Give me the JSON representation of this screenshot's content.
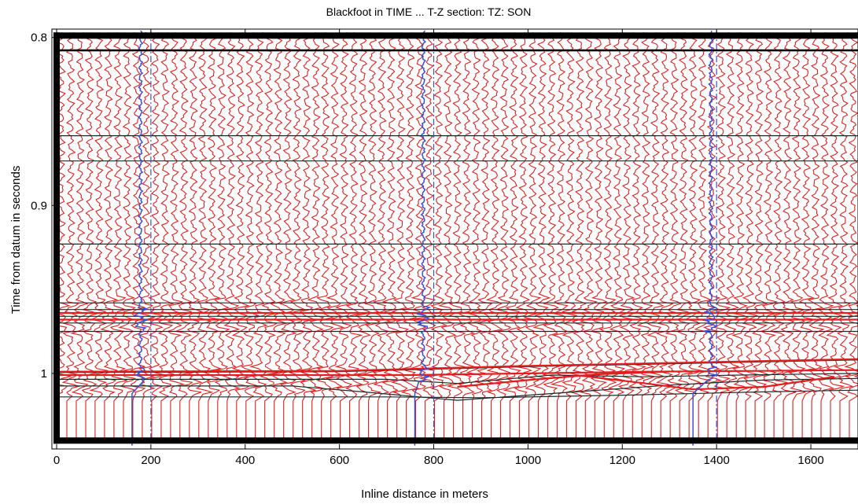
{
  "chart_data": {
    "type": "line",
    "title": "Blackfoot in TIME ... T-Z section: TZ: SON",
    "xlabel": "Inline distance in meters",
    "ylabel": "Time from datum in seconds",
    "xlim": [
      -10,
      1700
    ],
    "ylim": [
      0.795,
      1.045
    ],
    "y_inverted": true,
    "x_ticks": [
      0,
      200,
      400,
      600,
      800,
      1000,
      1200,
      1400,
      1600
    ],
    "x_tick_labels": [
      "0",
      "200",
      "400",
      "600",
      "800",
      "1000",
      "1200",
      "1400",
      "1600"
    ],
    "y_ticks": [
      0.8,
      0.9,
      1.0
    ],
    "y_tick_labels": [
      "0.8",
      "0.9",
      "1"
    ],
    "grid": false,
    "legend": "none",
    "seismic_traces": {
      "color": "#e02020",
      "spacing_m": 20,
      "first_x": 0,
      "last_x": 1700
    },
    "horizons": [
      {
        "name": "",
        "values": [
          [
            0,
            0.808
          ],
          [
            1700,
            0.808
          ]
        ]
      },
      {
        "name": "",
        "values": [
          [
            0,
            0.8585
          ],
          [
            1700,
            0.8585
          ]
        ]
      },
      {
        "name": "",
        "values": [
          [
            0,
            0.8735
          ],
          [
            1700,
            0.8735
          ]
        ]
      },
      {
        "name": "",
        "values": [
          [
            0,
            0.923
          ],
          [
            1700,
            0.923
          ]
        ]
      },
      {
        "name": "",
        "values": [
          [
            0,
            0.958
          ],
          [
            1700,
            0.958
          ]
        ]
      },
      {
        "name": "",
        "values": [
          [
            0,
            0.962
          ],
          [
            1700,
            0.962
          ]
        ]
      },
      {
        "name": "",
        "values": [
          [
            0,
            0.966
          ],
          [
            1700,
            0.966
          ]
        ]
      },
      {
        "name": "",
        "values": [
          [
            0,
            0.97
          ],
          [
            1700,
            0.97
          ]
        ]
      },
      {
        "name": "",
        "values": [
          [
            0,
            0.975
          ],
          [
            1700,
            0.975
          ]
        ]
      },
      {
        "name": "",
        "values": [
          [
            0,
            0.9995
          ],
          [
            600,
            0.999
          ],
          [
            1000,
            0.996
          ],
          [
            1700,
            0.992
          ]
        ]
      },
      {
        "name": "",
        "values": [
          [
            0,
            1.0035
          ],
          [
            700,
            1.0035
          ],
          [
            850,
            1.006
          ],
          [
            1050,
            1.001
          ],
          [
            1250,
            1.002
          ],
          [
            1450,
            1.001
          ],
          [
            1700,
            1.0
          ]
        ]
      },
      {
        "name": "",
        "values": [
          [
            0,
            1.0075
          ],
          [
            500,
            1.0075
          ],
          [
            650,
            1.011
          ],
          [
            850,
            1.016
          ],
          [
            1050,
            1.012
          ],
          [
            1300,
            1.007
          ],
          [
            1500,
            1.004
          ],
          [
            1700,
            1.003
          ]
        ]
      },
      {
        "name": "",
        "values": [
          [
            0,
            1.014
          ],
          [
            700,
            1.014
          ],
          [
            900,
            1.0145
          ],
          [
            1200,
            1.013
          ],
          [
            1500,
            1.011
          ],
          [
            1700,
            1.01
          ]
        ]
      }
    ],
    "red_horizons": [
      {
        "name": "",
        "values": [
          [
            0,
            0.964
          ],
          [
            1700,
            0.964
          ]
        ]
      },
      {
        "name": "",
        "values": [
          [
            0,
            0.968
          ],
          [
            1700,
            0.968
          ]
        ]
      },
      {
        "name": "",
        "values": [
          [
            0,
            0.999
          ],
          [
            600,
            0.9985
          ],
          [
            1000,
            0.9955
          ],
          [
            1700,
            0.9915
          ]
        ]
      },
      {
        "name": "",
        "values": [
          [
            0,
            1.001
          ],
          [
            750,
            1.001
          ],
          [
            1000,
            1.0
          ],
          [
            1250,
            0.999
          ],
          [
            1500,
            0.9985
          ],
          [
            1700,
            0.998
          ]
        ]
      },
      {
        "name": "",
        "values": [
          [
            850,
            1.008
          ],
          [
            1000,
            1.004
          ],
          [
            1150,
            1.0005
          ],
          [
            1300,
            0.999
          ]
        ]
      },
      {
        "name": "",
        "values": [
          [
            1100,
            1.001
          ],
          [
            1250,
            1.006
          ],
          [
            1350,
            1.0095
          ],
          [
            1500,
            1.008
          ],
          [
            1650,
            1.002
          ]
        ]
      }
    ],
    "wells": [
      {
        "name": "",
        "x": 200,
        "log_x": 178,
        "log_bottom_x": 160
      },
      {
        "name": "",
        "x": 800,
        "log_x": 778,
        "log_bottom_x": 760
      },
      {
        "name": "",
        "x": 1400,
        "log_x": 1388,
        "log_bottom_x": 1350
      }
    ],
    "well_color": "#3a4fd6"
  }
}
